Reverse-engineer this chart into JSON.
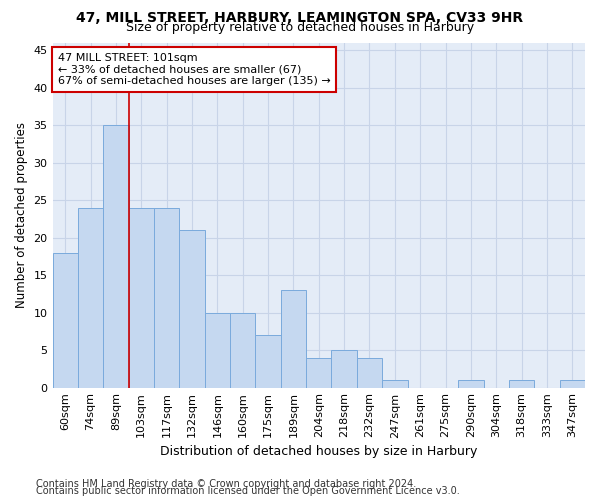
{
  "title1": "47, MILL STREET, HARBURY, LEAMINGTON SPA, CV33 9HR",
  "title2": "Size of property relative to detached houses in Harbury",
  "xlabel": "Distribution of detached houses by size in Harbury",
  "ylabel": "Number of detached properties",
  "categories": [
    "60sqm",
    "74sqm",
    "89sqm",
    "103sqm",
    "117sqm",
    "132sqm",
    "146sqm",
    "160sqm",
    "175sqm",
    "189sqm",
    "204sqm",
    "218sqm",
    "232sqm",
    "247sqm",
    "261sqm",
    "275sqm",
    "290sqm",
    "304sqm",
    "318sqm",
    "333sqm",
    "347sqm"
  ],
  "values": [
    18,
    24,
    35,
    24,
    24,
    21,
    10,
    10,
    7,
    13,
    4,
    5,
    4,
    1,
    0,
    0,
    1,
    0,
    1,
    0,
    1
  ],
  "bar_color": "#c5d8f0",
  "bar_edge_color": "#7aaadc",
  "vline_x": 2.5,
  "vline_color": "#cc0000",
  "annotation_line1": "47 MILL STREET: 101sqm",
  "annotation_line2": "← 33% of detached houses are smaller (67)",
  "annotation_line3": "67% of semi-detached houses are larger (135) →",
  "annotation_box_color": "#ffffff",
  "annotation_box_edge_color": "#cc0000",
  "ylim": [
    0,
    46
  ],
  "yticks": [
    0,
    5,
    10,
    15,
    20,
    25,
    30,
    35,
    40,
    45
  ],
  "grid_color": "#c8d4e8",
  "background_color": "#e4ecf7",
  "footer1": "Contains HM Land Registry data © Crown copyright and database right 2024.",
  "footer2": "Contains public sector information licensed under the Open Government Licence v3.0.",
  "title1_fontsize": 10,
  "title2_fontsize": 9,
  "xlabel_fontsize": 9,
  "ylabel_fontsize": 8.5,
  "tick_fontsize": 8,
  "footer_fontsize": 7,
  "annotation_fontsize": 8
}
